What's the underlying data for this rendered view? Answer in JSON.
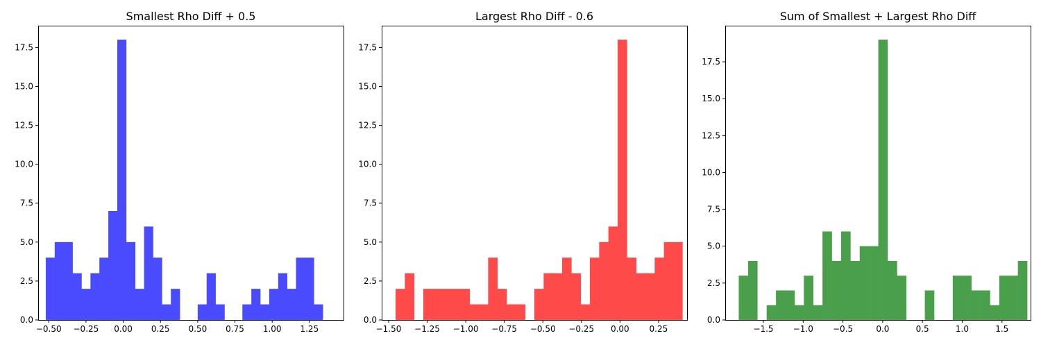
{
  "chart_data": [
    {
      "type": "bar",
      "histogram": true,
      "title": "Smallest Rho Diff + 0.5",
      "xlabel": "",
      "ylabel": "",
      "color": "#4a4aff",
      "xlim": [
        -0.571,
        1.479
      ],
      "ylim": [
        0,
        18.9
      ],
      "bin_start": -0.52,
      "bin_width": 0.06,
      "values": [
        4,
        5,
        5,
        3,
        2,
        3,
        4,
        7,
        18,
        5,
        2,
        6,
        4,
        1,
        2,
        0,
        0,
        1,
        3,
        1,
        0,
        0,
        1,
        2,
        1,
        2,
        3,
        2,
        4,
        4,
        1
      ],
      "xticks": [
        -0.5,
        -0.25,
        0.0,
        0.25,
        0.5,
        0.75,
        1.0,
        1.25
      ],
      "xtick_labels": [
        "−0.50",
        "−0.25",
        "0.00",
        "0.25",
        "0.50",
        "0.75",
        "1.00",
        "1.25"
      ],
      "yticks": [
        0,
        2.5,
        5,
        7.5,
        10,
        12.5,
        15,
        17.5
      ],
      "ytick_labels": [
        "0.0",
        "2.5",
        "5.0",
        "7.5",
        "10.0",
        "12.5",
        "15.0",
        "17.5"
      ],
      "grid": false
    },
    {
      "type": "bar",
      "histogram": true,
      "title": "Largest Rho Diff - 0.6",
      "xlabel": "",
      "ylabel": "",
      "color": "#ff4a4a",
      "xlim": [
        -1.545,
        0.435
      ],
      "ylim": [
        0,
        18.9
      ],
      "bin_start": -1.455,
      "bin_width": 0.06,
      "values": [
        2,
        3,
        0,
        2,
        2,
        2,
        2,
        2,
        1,
        1,
        4,
        2,
        1,
        1,
        0,
        2,
        3,
        3,
        4,
        3,
        1,
        4,
        5,
        6,
        18,
        4,
        3,
        3,
        4,
        5,
        5
      ],
      "xticks": [
        -1.5,
        -1.25,
        -1.0,
        -0.75,
        -0.5,
        -0.25,
        0.0,
        0.25
      ],
      "xtick_labels": [
        "−1.50",
        "−1.25",
        "−1.00",
        "−0.75",
        "−0.50",
        "−0.25",
        "0.00",
        "0.25"
      ],
      "yticks": [
        0,
        2.5,
        5,
        7.5,
        10,
        12.5,
        15,
        17.5
      ],
      "ytick_labels": [
        "0.0",
        "2.5",
        "5.0",
        "7.5",
        "10.0",
        "12.5",
        "15.0",
        "17.5"
      ],
      "grid": false
    },
    {
      "type": "bar",
      "histogram": true,
      "title": "Sum of Smallest + Largest Rho Diff",
      "xlabel": "",
      "ylabel": "",
      "color": "#4aa04a",
      "xlim": [
        -1.98,
        1.86
      ],
      "ylim": [
        0,
        19.95
      ],
      "bin_start": -1.81,
      "bin_width": 0.117,
      "values": [
        3,
        4,
        0,
        1,
        2,
        2,
        1,
        3,
        1,
        6,
        4,
        6,
        4,
        5,
        5,
        19,
        4,
        3,
        0,
        0,
        2,
        0,
        0,
        3,
        3,
        2,
        2,
        1,
        3,
        3,
        4
      ],
      "xticks": [
        -1.5,
        -1.0,
        -0.5,
        0.0,
        0.5,
        1.0,
        1.5
      ],
      "xtick_labels": [
        "−1.5",
        "−1.0",
        "−0.5",
        "0.0",
        "0.5",
        "1.0",
        "1.5"
      ],
      "yticks": [
        0,
        2.5,
        5,
        7.5,
        10,
        12.5,
        15,
        17.5
      ],
      "ytick_labels": [
        "0.0",
        "2.5",
        "5.0",
        "7.5",
        "10.0",
        "12.5",
        "15.0",
        "17.5"
      ],
      "grid": false
    }
  ]
}
